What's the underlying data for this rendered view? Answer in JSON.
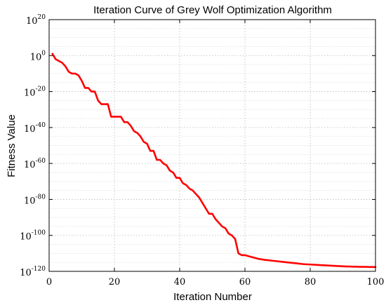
{
  "chart_data": {
    "type": "line",
    "title": "Iteration Curve of Grey Wolf Optimization Algorithm",
    "xlabel": "Iteration Number",
    "ylabel": "Fitness Value",
    "xlim": [
      0,
      100
    ],
    "ylim_log10": [
      -120,
      20
    ],
    "y_scale": "log",
    "grid": true,
    "x_ticks": [
      "0",
      "20",
      "40",
      "60",
      "80",
      "100"
    ],
    "y_ticks": [
      {
        "base": "10",
        "exp": "20"
      },
      {
        "base": "10",
        "exp": "0"
      },
      {
        "base": "10",
        "exp": "-20"
      },
      {
        "base": "10",
        "exp": "-40"
      },
      {
        "base": "10",
        "exp": "-60"
      },
      {
        "base": "10",
        "exp": "-80"
      },
      {
        "base": "10",
        "exp": "-100"
      },
      {
        "base": "10",
        "exp": "-120"
      }
    ],
    "series": [
      {
        "color": "#ff0000",
        "x": [
          1,
          2,
          3,
          4,
          5,
          6,
          7,
          8,
          9,
          10,
          11,
          12,
          13,
          14,
          15,
          16,
          17,
          18,
          19,
          20,
          21,
          22,
          23,
          24,
          25,
          26,
          27,
          28,
          29,
          30,
          31,
          32,
          33,
          34,
          35,
          36,
          37,
          38,
          39,
          40,
          41,
          42,
          43,
          44,
          45,
          46,
          47,
          48,
          49,
          50,
          51,
          52,
          53,
          54,
          55,
          56,
          57,
          58,
          59,
          60,
          61,
          62,
          63,
          64,
          65,
          66,
          67,
          68,
          69,
          70,
          71,
          72,
          73,
          74,
          75,
          76,
          77,
          78,
          79,
          80,
          81,
          82,
          83,
          84,
          85,
          86,
          87,
          88,
          89,
          90,
          91,
          92,
          93,
          94,
          95,
          96,
          97,
          98,
          99,
          100
        ],
        "log10_y": [
          1,
          -2,
          -3,
          -4,
          -6,
          -9,
          -10,
          -10,
          -11,
          -14,
          -18,
          -18,
          -20,
          -20,
          -25,
          -27,
          -27,
          -27,
          -34,
          -34,
          -34,
          -34,
          -37,
          -37,
          -39,
          -42,
          -43,
          -45,
          -48,
          -49,
          -53,
          -53,
          -58,
          -58,
          -60,
          -61,
          -64,
          -65,
          -68,
          -68,
          -71,
          -72,
          -74,
          -75,
          -77,
          -79,
          -82,
          -85,
          -88,
          -88,
          -91,
          -93,
          -95,
          -96,
          -99,
          -100,
          -102,
          -110,
          -111,
          -111,
          -111.5,
          -112,
          -112.5,
          -113,
          -113.3,
          -113.6,
          -113.8,
          -114,
          -114.2,
          -114.4,
          -114.6,
          -114.8,
          -115,
          -115.2,
          -115.4,
          -115.6,
          -115.8,
          -116,
          -116.1,
          -116.2,
          -116.3,
          -116.4,
          -116.5,
          -116.6,
          -116.7,
          -116.8,
          -116.9,
          -117,
          -117.1,
          -117.2,
          -117.3,
          -117.3,
          -117.4,
          -117.4,
          -117.5,
          -117.5,
          -117.5,
          -117.6,
          -117.6,
          -117.6
        ]
      }
    ]
  }
}
